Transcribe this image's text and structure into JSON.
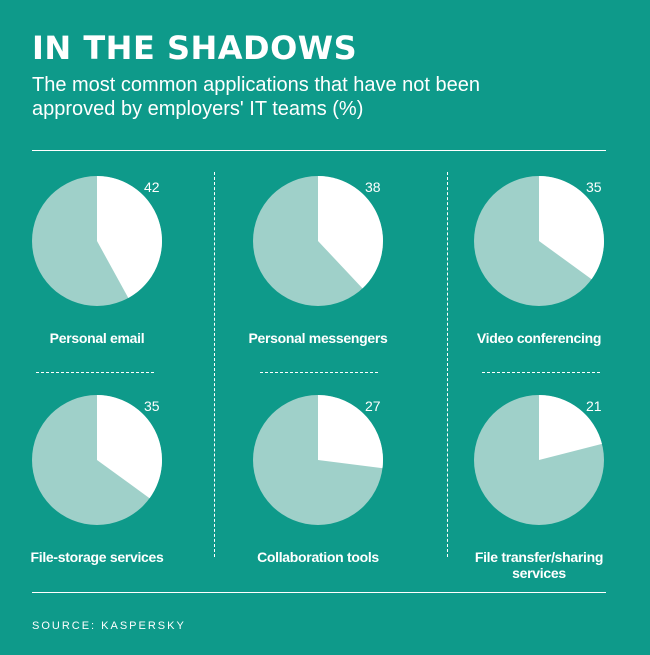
{
  "header": {
    "title": "IN THE SHADOWS",
    "subtitle": "The most common applications that have not been approved by employers' IT teams (%)"
  },
  "footer": {
    "source": "SOURCE: KASPERSKY"
  },
  "colors": {
    "background": "#0e9a8a",
    "slice": "#ffffff",
    "remainder": "#9fd0c9"
  },
  "chart_data": [
    {
      "type": "pie",
      "label": "Personal email",
      "value": 42,
      "total": 100
    },
    {
      "type": "pie",
      "label": "Personal messengers",
      "value": 38,
      "total": 100
    },
    {
      "type": "pie",
      "label": "Video conferencing",
      "value": 35,
      "total": 100
    },
    {
      "type": "pie",
      "label": "File-storage services",
      "value": 35,
      "total": 100
    },
    {
      "type": "pie",
      "label": "Collaboration tools",
      "value": 27,
      "total": 100
    },
    {
      "type": "pie",
      "label": "File transfer/sharing services",
      "value": 21,
      "total": 100
    }
  ]
}
